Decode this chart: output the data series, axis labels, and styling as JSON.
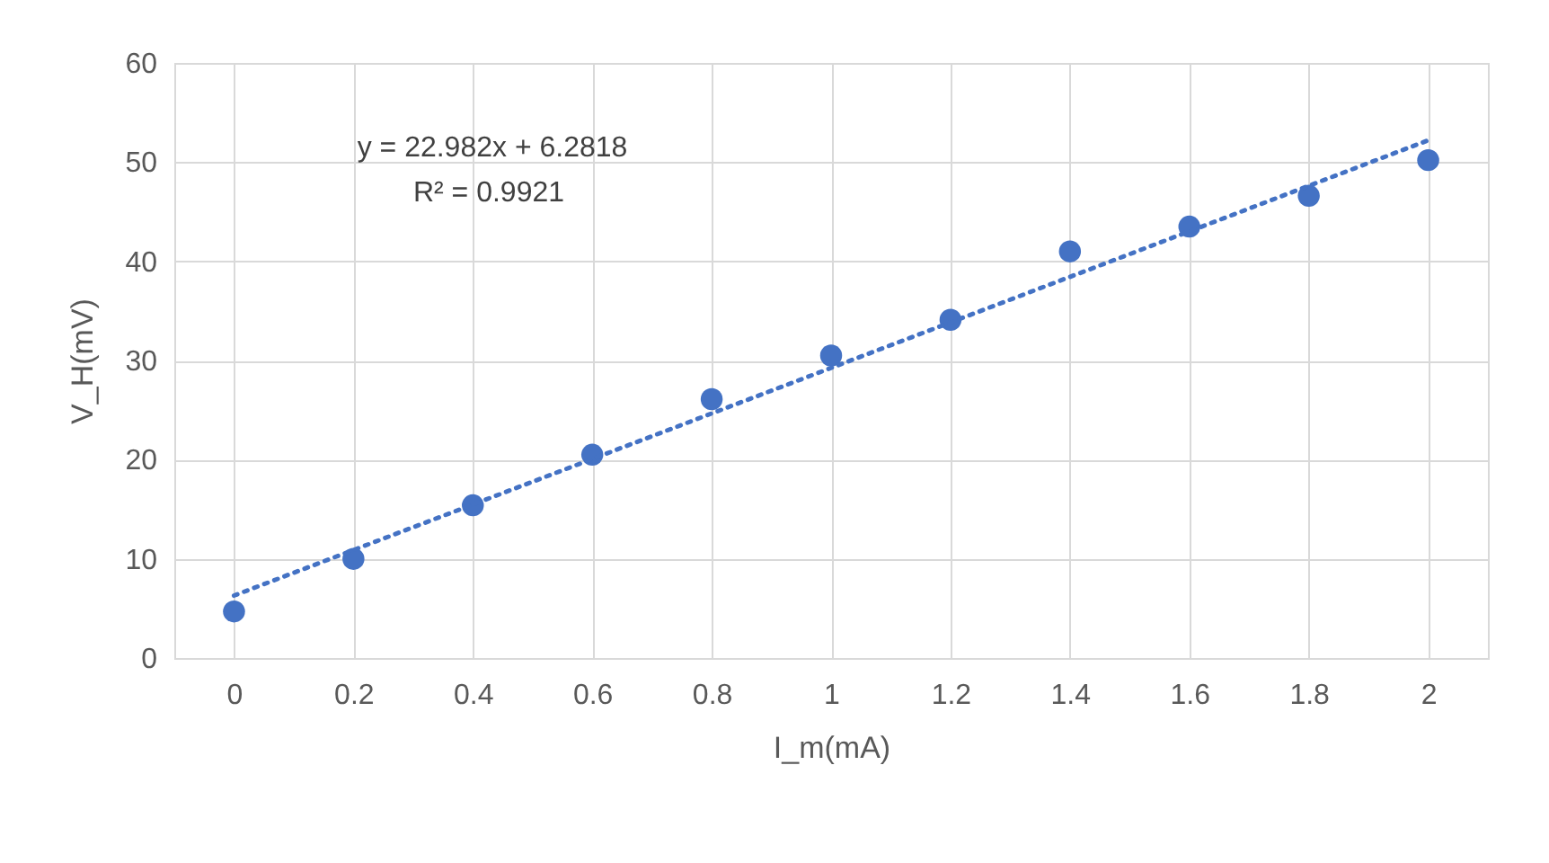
{
  "chart_data": {
    "type": "scatter",
    "xlabel": "I_m(mA)",
    "ylabel": "V_H(mV)",
    "annotations": [
      "y = 22.982x + 6.2818",
      "R² = 0.9921"
    ],
    "xlim": [
      -0.1,
      2.1
    ],
    "xticks": [
      0,
      0.2,
      0.4,
      0.6,
      0.8,
      1,
      1.2,
      1.4,
      1.6,
      1.8,
      2
    ],
    "ylim": [
      0,
      60
    ],
    "yticks": [
      0,
      10,
      20,
      30,
      40,
      50,
      60
    ],
    "grid": true,
    "marker": "circle",
    "series": [
      {
        "color": "#4472c4",
        "x": [
          0,
          0.2,
          0.4,
          0.6,
          0.8,
          1,
          1.2,
          1.4,
          1.6,
          1.8,
          2
        ],
        "values": [
          4.7,
          10,
          15.4,
          20.5,
          26.1,
          30.5,
          34.1,
          41,
          43.5,
          46.6,
          50.2
        ]
      },
      {
        "type": "line",
        "color": "#4472c4",
        "line_style": "dotted",
        "marker": "none",
        "x": [
          0,
          2
        ],
        "values": [
          6.3,
          52.2
        ]
      }
    ]
  }
}
